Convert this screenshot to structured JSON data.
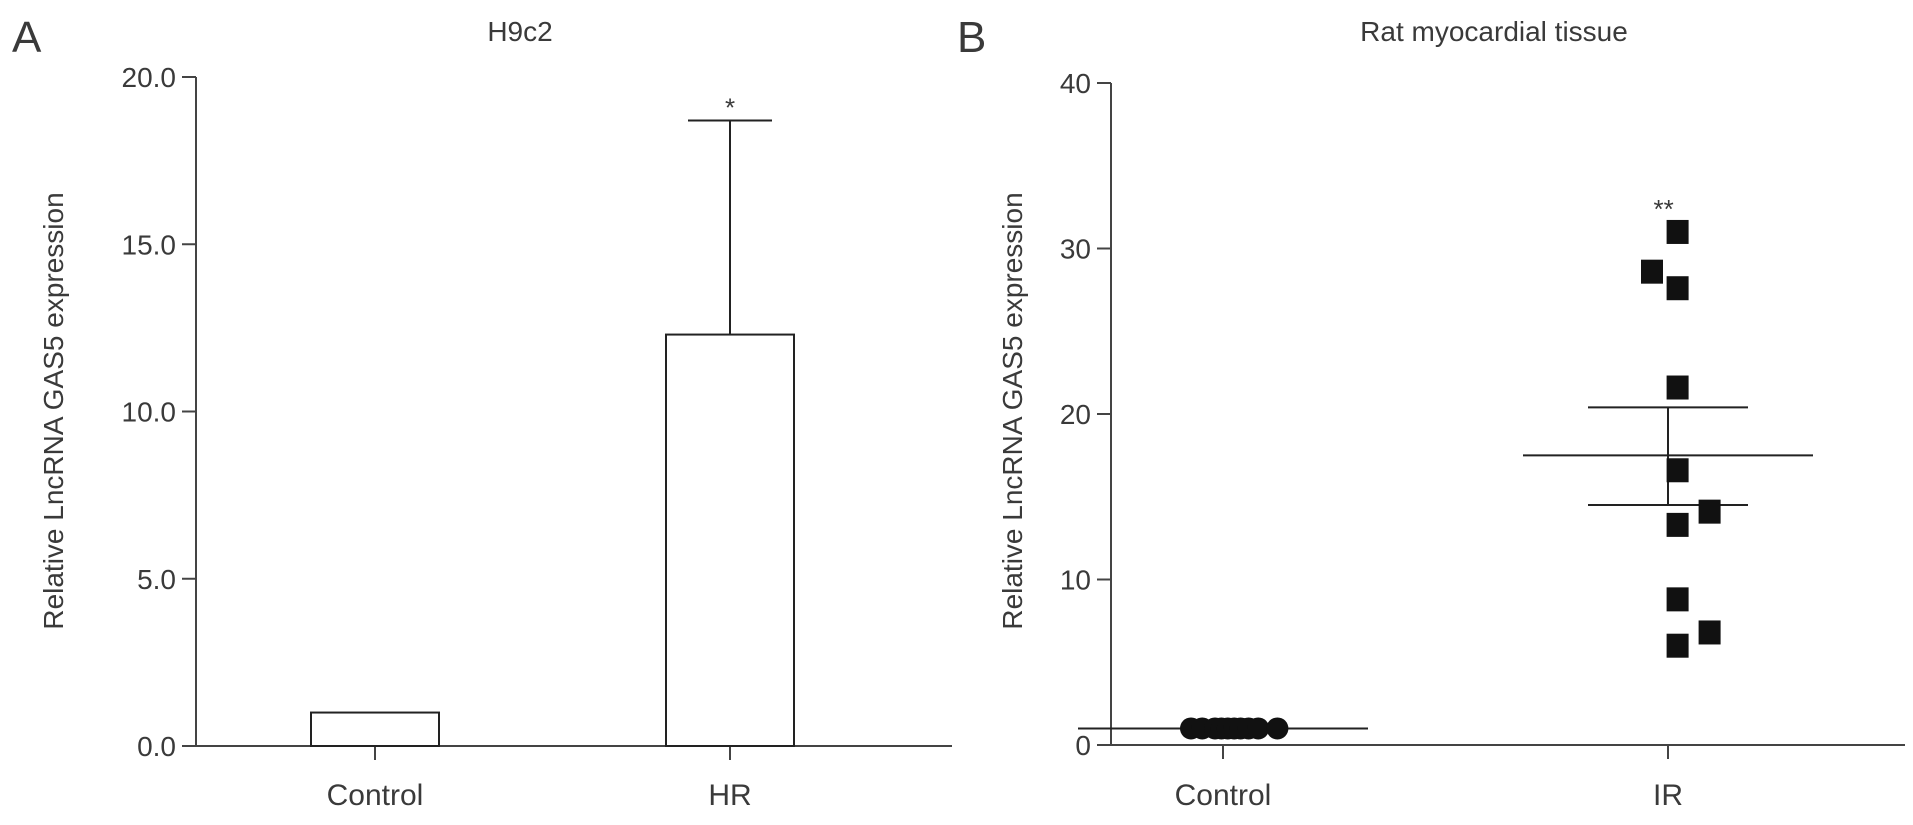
{
  "chart_data": [
    {
      "panel_label": "A",
      "type": "bar",
      "title": "H9c2",
      "xlabel": "",
      "ylabel": "Relative LncRNA GAS5 expression",
      "ylim": [
        0,
        20
      ],
      "yticks": [
        "0.0",
        "5.0",
        "10.0",
        "15.0",
        "20.0"
      ],
      "ytick_values": [
        0,
        5,
        10,
        15,
        20
      ],
      "categories": [
        "Control",
        "HR"
      ],
      "values": [
        1.0,
        12.3
      ],
      "error_upper": [
        0,
        18.7
      ],
      "significance": [
        "",
        "*"
      ],
      "bar_fill": "#ffffff",
      "stroke": "#222222",
      "grid": false
    },
    {
      "panel_label": "B",
      "type": "scatter",
      "title": "Rat myocardial tissue",
      "xlabel": "",
      "ylabel": "Relative LncRNA GAS5 expression",
      "ylim": [
        0,
        40
      ],
      "yticks": [
        "0",
        "10",
        "20",
        "30",
        "40"
      ],
      "ytick_values": [
        0,
        10,
        20,
        30,
        40
      ],
      "categories": [
        "Control",
        "IR"
      ],
      "series": [
        {
          "category": "Control",
          "marker": "circle",
          "points": [
            {
              "x": -0.2,
              "y": 1.0
            },
            {
              "x": -0.13,
              "y": 1.0
            },
            {
              "x": -0.05,
              "y": 1.0
            },
            {
              "x": -0.01,
              "y": 1.0
            },
            {
              "x": 0.03,
              "y": 1.0
            },
            {
              "x": 0.07,
              "y": 1.0
            },
            {
              "x": 0.11,
              "y": 1.0
            },
            {
              "x": 0.16,
              "y": 1.0
            },
            {
              "x": 0.22,
              "y": 1.0
            },
            {
              "x": 0.34,
              "y": 1.0
            }
          ],
          "mean": 1.0,
          "sem_low": 1.0,
          "sem_high": 1.0
        },
        {
          "category": "IR",
          "marker": "square",
          "points": [
            {
              "x": 0.06,
              "y": 31.0
            },
            {
              "x": -0.1,
              "y": 28.6
            },
            {
              "x": 0.06,
              "y": 27.6
            },
            {
              "x": 0.06,
              "y": 21.6
            },
            {
              "x": 0.06,
              "y": 16.6
            },
            {
              "x": 0.26,
              "y": 14.1
            },
            {
              "x": 0.06,
              "y": 13.3
            },
            {
              "x": 0.06,
              "y": 8.8
            },
            {
              "x": 0.26,
              "y": 6.8
            },
            {
              "x": 0.06,
              "y": 6.0
            }
          ],
          "mean": 17.5,
          "sem_low": 14.5,
          "sem_high": 20.4
        }
      ],
      "significance": [
        "",
        "**"
      ],
      "marker_color": "#111111",
      "grid": false
    }
  ]
}
